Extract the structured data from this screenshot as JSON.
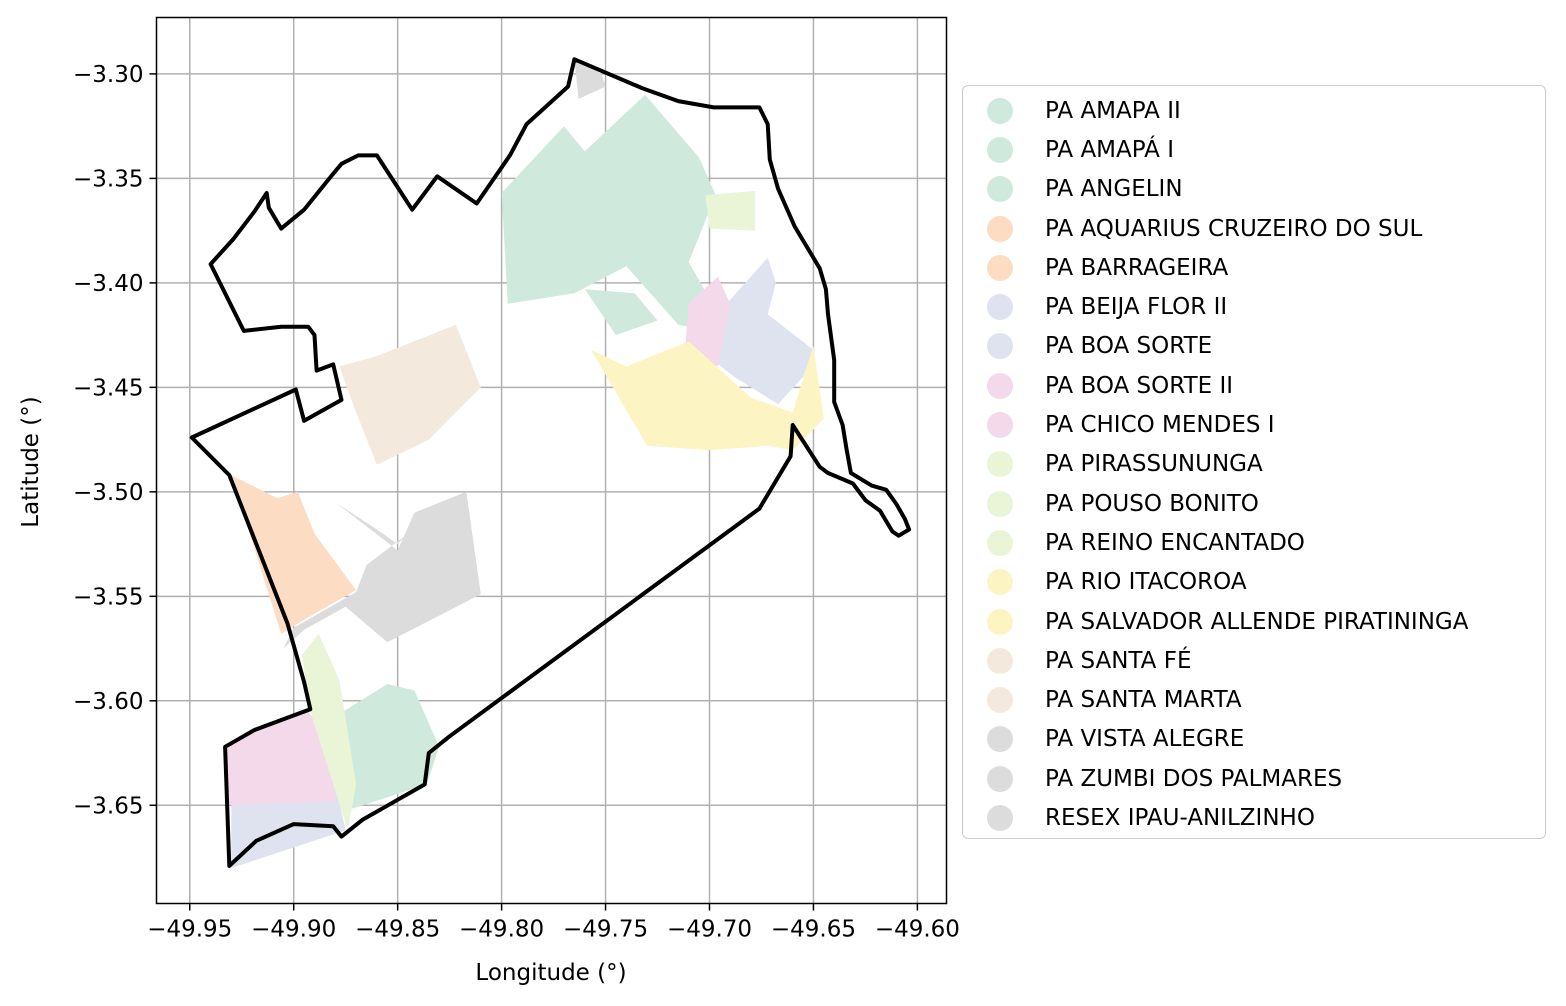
{
  "chart_data": {
    "type": "map",
    "xlabel": "Longitude (°)",
    "ylabel": "Latitude (°)",
    "xlim": [
      -49.966,
      -49.586
    ],
    "ylim": [
      -3.697,
      -3.273
    ],
    "x_ticks": [
      -49.95,
      -49.9,
      -49.85,
      -49.8,
      -49.75,
      -49.7,
      -49.65,
      -49.6
    ],
    "x_tick_labels": [
      "−49.95",
      "−49.90",
      "−49.85",
      "−49.80",
      "−49.75",
      "−49.70",
      "−49.65",
      "−49.60"
    ],
    "y_ticks": [
      -3.3,
      -3.35,
      -3.4,
      -3.45,
      -3.5,
      -3.55,
      -3.6,
      -3.65
    ],
    "y_tick_labels": [
      "−3.30",
      "−3.35",
      "−3.40",
      "−3.45",
      "−3.50",
      "−3.55",
      "−3.60",
      "−3.65"
    ],
    "grid": true,
    "legend_position": "right",
    "boundary_color": "#000000",
    "boundary": [
      [
        -49.765,
        -3.293
      ],
      [
        -49.732,
        -3.307
      ],
      [
        -49.715,
        -3.313
      ],
      [
        -49.698,
        -3.316
      ],
      [
        -49.676,
        -3.316
      ],
      [
        -49.672,
        -3.324
      ],
      [
        -49.671,
        -3.341
      ],
      [
        -49.667,
        -3.355
      ],
      [
        -49.659,
        -3.373
      ],
      [
        -49.647,
        -3.393
      ],
      [
        -49.644,
        -3.403
      ],
      [
        -49.643,
        -3.415
      ],
      [
        -49.64,
        -3.437
      ],
      [
        -49.64,
        -3.457
      ],
      [
        -49.636,
        -3.468
      ],
      [
        -49.634,
        -3.48
      ],
      [
        -49.632,
        -3.491
      ],
      [
        -49.622,
        -3.497
      ],
      [
        -49.615,
        -3.499
      ],
      [
        -49.61,
        -3.506
      ],
      [
        -49.606,
        -3.513
      ],
      [
        -49.604,
        -3.518
      ],
      [
        -49.609,
        -3.521
      ],
      [
        -49.612,
        -3.519
      ],
      [
        -49.618,
        -3.509
      ],
      [
        -49.625,
        -3.504
      ],
      [
        -49.631,
        -3.496
      ],
      [
        -49.643,
        -3.491
      ],
      [
        -49.647,
        -3.488
      ],
      [
        -49.66,
        -3.468
      ],
      [
        -49.661,
        -3.483
      ],
      [
        -49.664,
        -3.488
      ],
      [
        -49.676,
        -3.508
      ],
      [
        -49.825,
        -3.617
      ],
      [
        -49.835,
        -3.625
      ],
      [
        -49.837,
        -3.64
      ],
      [
        -49.867,
        -3.657
      ],
      [
        -49.877,
        -3.665
      ],
      [
        -49.881,
        -3.66
      ],
      [
        -49.9,
        -3.659
      ],
      [
        -49.918,
        -3.667
      ],
      [
        -49.931,
        -3.679
      ],
      [
        -49.933,
        -3.622
      ],
      [
        -49.919,
        -3.614
      ],
      [
        -49.892,
        -3.604
      ],
      [
        -49.895,
        -3.591
      ],
      [
        -49.903,
        -3.563
      ],
      [
        -49.931,
        -3.492
      ],
      [
        -49.949,
        -3.474
      ],
      [
        -49.899,
        -3.451
      ],
      [
        -49.895,
        -3.466
      ],
      [
        -49.877,
        -3.456
      ],
      [
        -49.881,
        -3.439
      ],
      [
        -49.889,
        -3.442
      ],
      [
        -49.89,
        -3.425
      ],
      [
        -49.893,
        -3.421
      ],
      [
        -49.906,
        -3.421
      ],
      [
        -49.924,
        -3.423
      ],
      [
        -49.94,
        -3.391
      ],
      [
        -49.929,
        -3.379
      ],
      [
        -49.919,
        -3.366
      ],
      [
        -49.913,
        -3.357
      ],
      [
        -49.912,
        -3.364
      ],
      [
        -49.906,
        -3.374
      ],
      [
        -49.895,
        -3.365
      ],
      [
        -49.882,
        -3.349
      ],
      [
        -49.877,
        -3.343
      ],
      [
        -49.869,
        -3.339
      ],
      [
        -49.86,
        -3.339
      ],
      [
        -49.843,
        -3.365
      ],
      [
        -49.831,
        -3.349
      ],
      [
        -49.812,
        -3.362
      ],
      [
        -49.796,
        -3.339
      ],
      [
        -49.788,
        -3.324
      ],
      [
        -49.768,
        -3.306
      ],
      [
        -49.765,
        -3.293
      ]
    ],
    "series": [
      {
        "name": "PA AMAPA II",
        "color": "#cfeadc",
        "polygons": [
          [
            [
              -49.8,
              -3.357
            ],
            [
              -49.77,
              -3.325
            ],
            [
              -49.76,
              -3.337
            ],
            [
              -49.731,
              -3.31
            ],
            [
              -49.705,
              -3.34
            ],
            [
              -49.697,
              -3.358
            ],
            [
              -49.71,
              -3.39
            ],
            [
              -49.69,
              -3.425
            ],
            [
              -49.715,
              -3.42
            ],
            [
              -49.74,
              -3.392
            ],
            [
              -49.765,
              -3.405
            ],
            [
              -49.797,
              -3.41
            ]
          ]
        ]
      },
      {
        "name": "PA AMAPÁ I",
        "color": "#cfeadc",
        "polygons": [
          [
            [
              -49.876,
              -3.605
            ],
            [
              -49.855,
              -3.592
            ],
            [
              -49.842,
              -3.595
            ],
            [
              -49.83,
              -3.622
            ],
            [
              -49.836,
              -3.64
            ],
            [
              -49.873,
              -3.652
            ]
          ]
        ]
      },
      {
        "name": "PA ANGELIN",
        "color": "#cfeadc",
        "polygons": [
          [
            [
              -49.736,
              -3.405
            ],
            [
              -49.76,
              -3.403
            ],
            [
              -49.745,
              -3.425
            ],
            [
              -49.725,
              -3.418
            ]
          ]
        ]
      },
      {
        "name": "PA AQUARIUS CRUZEIRO DO SUL",
        "color": "#fddcc4",
        "polygons": [
          [
            [
              -49.93,
              -3.492
            ],
            [
              -49.908,
              -3.503
            ],
            [
              -49.898,
              -3.5
            ],
            [
              -49.89,
              -3.52
            ],
            [
              -49.87,
              -3.547
            ],
            [
              -49.893,
              -3.56
            ],
            [
              -49.906,
              -3.568
            ]
          ]
        ]
      },
      {
        "name": "PA BARRAGEIRA",
        "color": "#fddcc4",
        "polygons": []
      },
      {
        "name": "PA BEIJA FLOR II",
        "color": "#dfe3f0",
        "polygons": [
          [
            [
              -49.93,
              -3.65
            ],
            [
              -49.88,
              -3.64
            ],
            [
              -49.875,
              -3.662
            ],
            [
              -49.93,
              -3.68
            ]
          ]
        ]
      },
      {
        "name": "PA BOA SORTE",
        "color": "#dfe3f0",
        "polygons": [
          [
            [
              -49.672,
              -3.388
            ],
            [
              -49.668,
              -3.4
            ],
            [
              -49.672,
              -3.415
            ],
            [
              -49.65,
              -3.432
            ],
            [
              -49.655,
              -3.445
            ],
            [
              -49.667,
              -3.458
            ],
            [
              -49.688,
              -3.445
            ],
            [
              -49.71,
              -3.428
            ],
            [
              -49.69,
              -3.408
            ]
          ]
        ]
      },
      {
        "name": "PA BOA SORTE II",
        "color": "#f4d9ea",
        "polygons": [
          [
            [
              -49.696,
              -3.397
            ],
            [
              -49.69,
              -3.41
            ],
            [
              -49.696,
              -3.44
            ],
            [
              -49.712,
              -3.435
            ],
            [
              -49.71,
              -3.41
            ]
          ]
        ]
      },
      {
        "name": "PA CHICO MENDES I",
        "color": "#f4d9ea",
        "polygons": [
          [
            [
              -49.932,
              -3.622
            ],
            [
              -49.918,
              -3.613
            ],
            [
              -49.893,
              -3.605
            ],
            [
              -49.88,
              -3.625
            ],
            [
              -49.88,
              -3.648
            ],
            [
              -49.932,
              -3.65
            ]
          ]
        ]
      },
      {
        "name": "PA PIRASSUNUNGA",
        "color": "#eaf5d8",
        "polygons": [
          [
            [
              -49.702,
              -3.358
            ],
            [
              -49.678,
              -3.356
            ],
            [
              -49.678,
              -3.375
            ],
            [
              -49.7,
              -3.374
            ]
          ]
        ]
      },
      {
        "name": "PA POUSO BONITO",
        "color": "#eaf5d8",
        "polygons": [
          [
            [
              -49.896,
              -3.578
            ],
            [
              -49.888,
              -3.568
            ],
            [
              -49.878,
              -3.59
            ],
            [
              -49.87,
              -3.64
            ],
            [
              -49.874,
              -3.662
            ],
            [
              -49.892,
              -3.605
            ]
          ]
        ]
      },
      {
        "name": "PA REINO ENCANTADO",
        "color": "#eaf5d8",
        "polygons": []
      },
      {
        "name": "PA RIO ITACOROA",
        "color": "#fdf4c4",
        "polygons": [
          [
            [
              -49.757,
              -3.432
            ],
            [
              -49.74,
              -3.44
            ],
            [
              -49.71,
              -3.428
            ],
            [
              -49.68,
              -3.455
            ],
            [
              -49.66,
              -3.462
            ],
            [
              -49.65,
              -3.43
            ],
            [
              -49.645,
              -3.465
            ],
            [
              -49.66,
              -3.48
            ],
            [
              -49.672,
              -3.478
            ],
            [
              -49.7,
              -3.48
            ],
            [
              -49.73,
              -3.478
            ]
          ]
        ]
      },
      {
        "name": "PA SALVADOR ALLENDE PIRATININGA",
        "color": "#fdf4c4",
        "polygons": []
      },
      {
        "name": "PA SANTA FÉ",
        "color": "#f3eadd",
        "polygons": [
          [
            [
              -49.878,
              -3.44
            ],
            [
              -49.87,
              -3.462
            ],
            [
              -49.86,
              -3.487
            ],
            [
              -49.835,
              -3.475
            ],
            [
              -49.81,
              -3.45
            ],
            [
              -49.822,
              -3.42
            ],
            [
              -49.86,
              -3.435
            ]
          ]
        ]
      },
      {
        "name": "PA SANTA MARTA",
        "color": "#f3eadd",
        "polygons": []
      },
      {
        "name": "PA VISTA ALEGRE",
        "color": "#dcdcdc",
        "polygons": [
          [
            [
              -49.88,
              -3.505
            ],
            [
              -49.86,
              -3.518
            ],
            [
              -49.85,
              -3.525
            ],
            [
              -49.845,
              -3.52
            ],
            [
              -49.865,
              -3.535
            ],
            [
              -49.87,
              -3.548
            ],
            [
              -49.9,
              -3.565
            ],
            [
              -49.905,
              -3.575
            ],
            [
              -49.895,
              -3.566
            ],
            [
              -49.875,
              -3.555
            ],
            [
              -49.855,
              -3.572
            ],
            [
              -49.81,
              -3.549
            ],
            [
              -49.817,
              -3.5
            ],
            [
              -49.842,
              -3.51
            ],
            [
              -49.85,
              -3.528
            ]
          ]
        ]
      },
      {
        "name": "PA ZUMBI DOS PALMARES",
        "color": "#dcdcdc",
        "polygons": [
          [
            [
              -49.765,
              -3.293
            ],
            [
              -49.763,
              -3.312
            ],
            [
              -49.75,
              -3.306
            ],
            [
              -49.752,
              -3.3
            ]
          ]
        ]
      },
      {
        "name": "RESEX IPAU-ANILZINHO",
        "color": "#dcdcdc",
        "polygons": []
      }
    ]
  }
}
